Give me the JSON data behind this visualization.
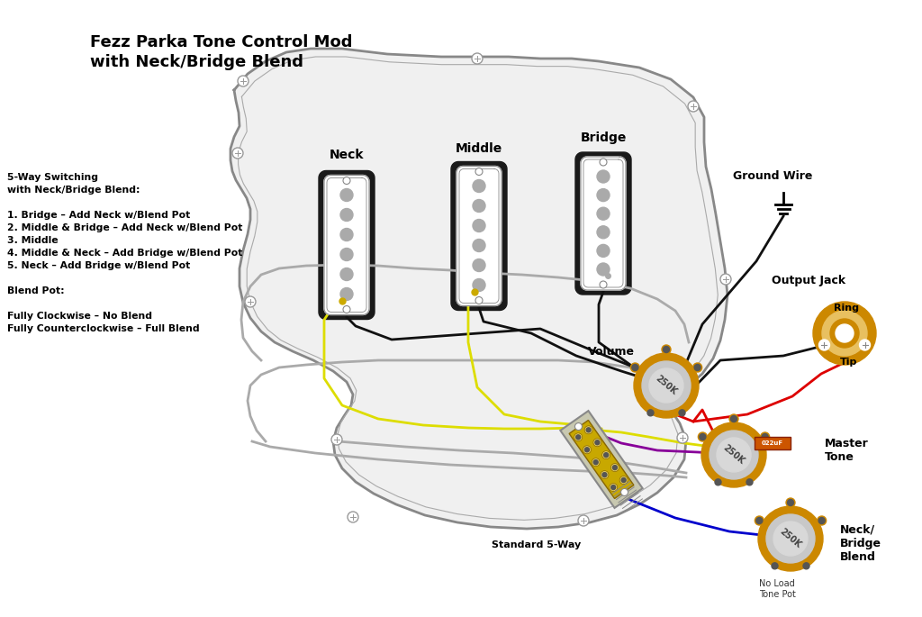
{
  "title": "Fezz Parka Tone Control Mod\nwith Neck/Bridge Blend",
  "bg_color": "#ffffff",
  "pickguard_color": "#e8e8e8",
  "pickguard_stroke": "#888888",
  "pot_body_color": "#cc8800",
  "pot_center_color": "#d0d0d0",
  "cap_color": "#cc5500",
  "wire_colors": {
    "black": "#111111",
    "yellow": "#dddd00",
    "red": "#dd0000",
    "gray": "#aaaaaa",
    "blue": "#0000cc",
    "purple": "#880099",
    "white": "#cccccc"
  },
  "labels": {
    "neck": "Neck",
    "middle": "Middle",
    "bridge": "Bridge",
    "volume": "Volume",
    "master_tone": "Master\nTone",
    "neck_bridge_blend": "Neck/\nBridge\nBlend",
    "standard_5way": "Standard 5-Way",
    "ground_wire": "Ground Wire",
    "output_jack": "Output Jack",
    "ring": "Ring",
    "tip": "Tip",
    "no_load": "No Load\nTone Pot",
    "switching_info": "5-Way Switching\nwith Neck/Bridge Blend:\n\n1. Bridge – Add Neck w/Blend Pot\n2. Middle & Bridge – Add Neck w/Blend Pot\n3. Middle\n4. Middle & Neck – Add Bridge w/Blend Pot\n5. Neck – Add Bridge w/Blend Pot\n\nBlend Pot:\n\nFully Clockwise – No Blend\nFully Counterclockwise – Full Blend"
  }
}
